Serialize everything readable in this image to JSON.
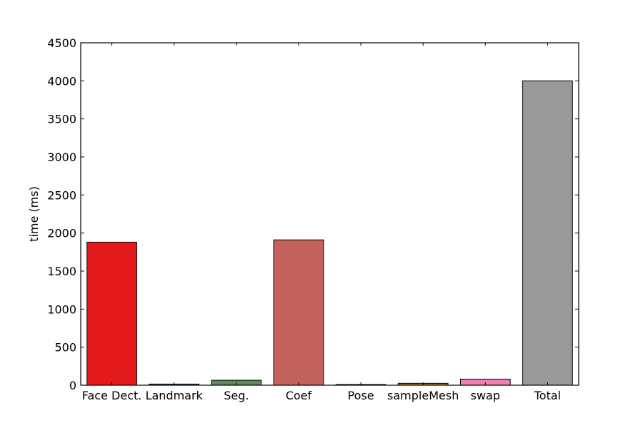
{
  "chart_data": {
    "type": "bar",
    "title": "",
    "xlabel": "",
    "ylabel": "time (ms)",
    "ylim": [
      0,
      4500
    ],
    "yticks": [
      0,
      500,
      1000,
      1500,
      2000,
      2500,
      3000,
      3500,
      4000,
      4500
    ],
    "grid": false,
    "legend": "none",
    "categories": [
      "Face Dect.",
      "Landmark",
      "Seg.",
      "Coef",
      "Pose",
      "sampleMesh",
      "swap",
      "Total"
    ],
    "values": [
      1880,
      15,
      65,
      1910,
      8,
      25,
      80,
      4000
    ],
    "colors": [
      "#e41a1c",
      "#2f5f8a",
      "#5e8a5c",
      "#c4625e",
      "#5a2d7a",
      "#b5712a",
      "#f07fb0",
      "#999999"
    ]
  }
}
